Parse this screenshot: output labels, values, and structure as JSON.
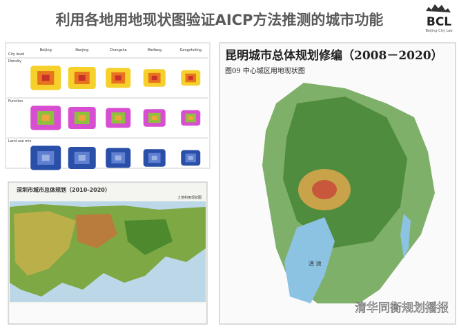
{
  "header": {
    "title": "利用各地用地现状图验证AICP方法推测的城市功能",
    "logo": "BCL",
    "logo_sub": "Beijing City Lab"
  },
  "table_figure": {
    "columns": [
      "City level",
      "Beijing",
      "Nanjing",
      "Changsha",
      "Weifang",
      "Gongzhuling"
    ],
    "rows": [
      "Density",
      "Function",
      "Land use mix"
    ]
  },
  "shenzhen_map": {
    "title": "深圳市城市总体规划（2010-2020）",
    "subtitle": "土地利用现状图"
  },
  "kunming_map": {
    "title": "昆明城市总体规划修编（2008－2020）",
    "subtitle": "图09  中心城区用地现状图",
    "lake_label": "滇 池"
  },
  "watermark": "清华同衡规划播报"
}
